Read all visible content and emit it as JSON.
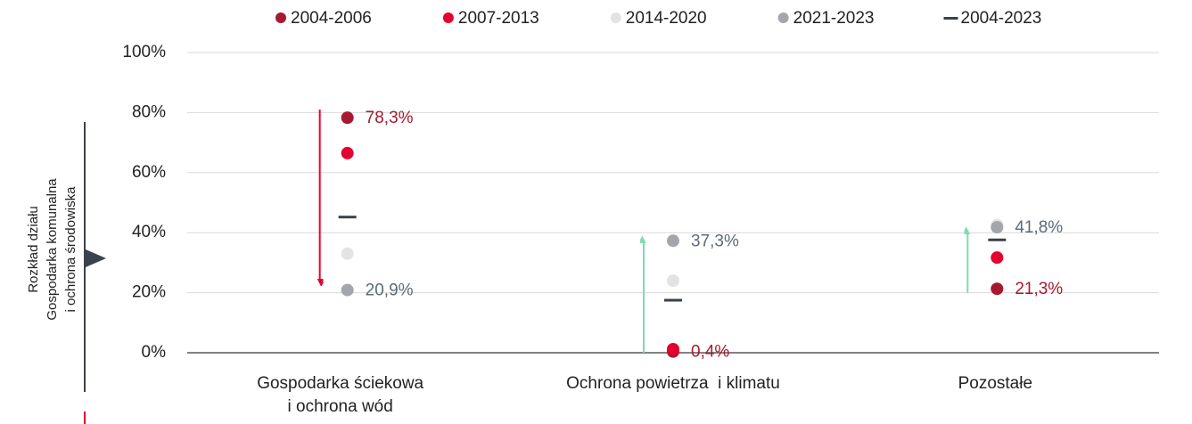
{
  "chart_data": {
    "type": "dot",
    "categories": [
      "Gospodarka ściekowa\ni ochrona wód",
      "Ochrona powietrza  i klimatu",
      "Pozostałe"
    ],
    "series": [
      {
        "name": "2004-2006",
        "color": "#a6192e",
        "marker": "circle",
        "values": [
          78.3,
          0.4,
          21.3
        ],
        "value_labels": [
          "78,3%",
          "0,4%",
          "21,3%"
        ],
        "label_color": "#a6192e"
      },
      {
        "name": "2007-2013",
        "color": "#e4032e",
        "marker": "circle",
        "values": [
          66.5,
          1.2,
          31.7
        ]
      },
      {
        "name": "2014-2020",
        "color": "#e3e3e3",
        "marker": "circle",
        "values": [
          33,
          24,
          42.5
        ]
      },
      {
        "name": "2021-2023",
        "color": "#a3a6ab",
        "marker": "circle",
        "values": [
          20.9,
          37.3,
          41.8
        ],
        "value_labels": [
          "20,9%",
          "37,3%",
          "41,8%"
        ],
        "label_color": "#5b6b7b"
      },
      {
        "name": "2004-2023",
        "color": "#3a424d",
        "marker": "dash",
        "values": [
          45.2,
          17.5,
          37.6
        ]
      }
    ],
    "arrows": [
      {
        "from": 81,
        "to": 21,
        "color": "#e4032e"
      },
      {
        "from": 0,
        "to": 40,
        "color": "#7ddcb0"
      },
      {
        "from": 20,
        "to": 43,
        "color": "#7ddcb0"
      }
    ],
    "side_label": [
      "Rozkład działu",
      "Gospodarka komunalna",
      "i ochrona środowiska"
    ],
    "ylim": [
      0,
      100
    ],
    "yticks": [
      {
        "value": 0,
        "label": "0%"
      },
      {
        "value": 20,
        "label": "20%"
      },
      {
        "value": 40,
        "label": "40%"
      },
      {
        "value": 60,
        "label": "60%"
      },
      {
        "value": 80,
        "label": "80%"
      },
      {
        "value": 100,
        "label": "100%"
      }
    ],
    "grid": true,
    "legend": "top"
  }
}
